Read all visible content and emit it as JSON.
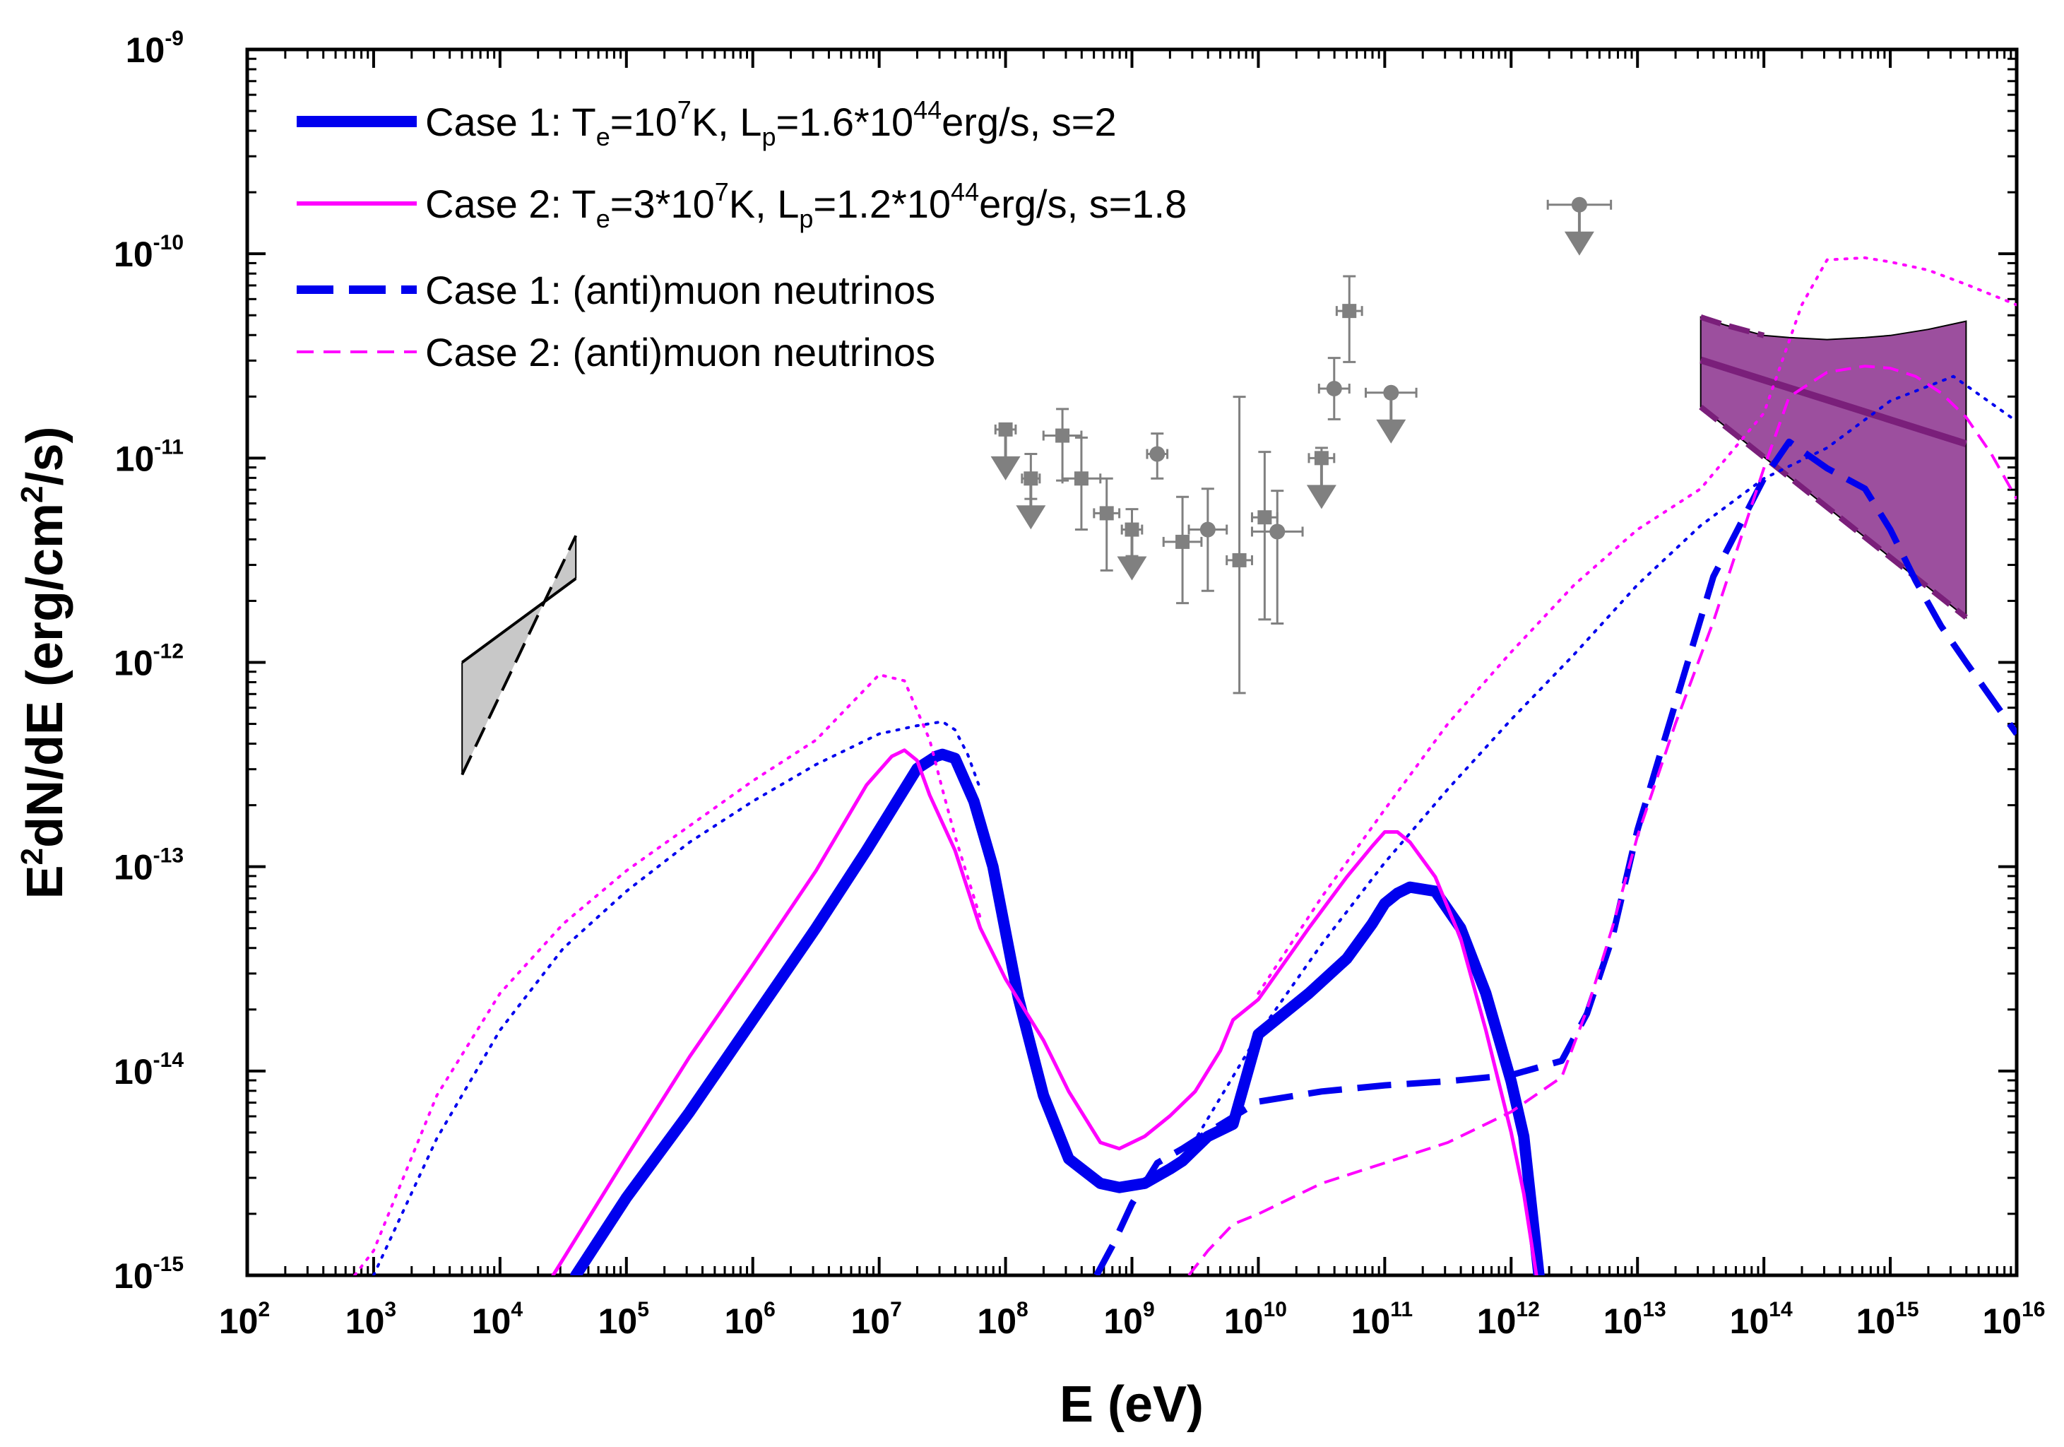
{
  "chart_data": {
    "type": "line",
    "log_x": true,
    "log_y": true,
    "xlabel": "E (eV)",
    "ylabel": {
      "text": "E",
      "sup": "2",
      "rest": "dN/dE (erg/cm",
      "sup2": "2",
      "end": "/s)"
    },
    "xlim": [
      100,
      1e+16
    ],
    "ylim": [
      1e-15,
      1e-09
    ],
    "x_ticks": [
      2,
      3,
      4,
      5,
      6,
      7,
      8,
      9,
      10,
      11,
      12,
      13,
      14,
      15,
      16
    ],
    "y_ticks": [
      -15,
      -14,
      -13,
      -12,
      -11,
      -10,
      -9
    ],
    "tick_base": "10",
    "colors": {
      "case1": "#0000ee",
      "case2": "#ff00ff",
      "data": "#808080",
      "band": "#9c4f9e",
      "band_line": "#7a1f7a",
      "xray": "#c8c8c8"
    },
    "legend": [
      {
        "name": "case1",
        "prefix": "Case 1: T",
        "sub1": "e",
        "eq1": "=10",
        "sup1": "7",
        "mid": "K, L",
        "sub2": "p",
        "eq2": "=1.6*10",
        "sup2": "44",
        "end": "erg/s, s=2",
        "style": "solid-thick",
        "color": "#0000ee"
      },
      {
        "name": "case2",
        "prefix": "Case 2: T",
        "sub1": "e",
        "eq1": "=3*10",
        "sup1": "7",
        "mid": "K, L",
        "sub2": "p",
        "eq2": "=1.2*10",
        "sup2": "44",
        "end": "erg/s, s=1.8",
        "style": "solid-thin",
        "color": "#ff00ff"
      },
      {
        "name": "case1-nu",
        "label": "Case 1: (anti)muon neutrinos",
        "style": "dashed-thick",
        "color": "#0000ee"
      },
      {
        "name": "case2-nu",
        "label": "Case 2: (anti)muon neutrinos",
        "style": "dashed-thin",
        "color": "#ff00ff"
      }
    ],
    "series": [
      {
        "name": "case1-total",
        "style": "solid-thick",
        "color": "#0000ee",
        "x": [
          4.6,
          5,
          5.5,
          6,
          6.5,
          6.9,
          7.2,
          7.3,
          7.45,
          7.5,
          7.6,
          7.75,
          7.9,
          8.1,
          8.3,
          8.5,
          8.75,
          8.9,
          9.1,
          9.3,
          9.4,
          9.5,
          9.6,
          9.8,
          10,
          10.4,
          10.7,
          10.9,
          11,
          11.1,
          11.2,
          11.4,
          11.6,
          11.8,
          12,
          12.1,
          12.22
        ],
        "y": [
          -15,
          -14.62,
          -14.2,
          -13.75,
          -13.3,
          -12.92,
          -12.62,
          -12.52,
          -12.46,
          -12.45,
          -12.47,
          -12.68,
          -13.0,
          -13.64,
          -14.12,
          -14.43,
          -14.55,
          -14.57,
          -14.55,
          -14.48,
          -14.44,
          -14.38,
          -14.32,
          -14.26,
          -13.82,
          -13.62,
          -13.45,
          -13.28,
          -13.18,
          -13.13,
          -13.1,
          -13.12,
          -13.3,
          -13.62,
          -14.05,
          -14.32,
          -15
        ]
      },
      {
        "name": "case1-sync",
        "style": "dotted",
        "color": "#0000ee",
        "x": [
          3,
          3.5,
          4,
          4.5,
          5,
          5.5,
          6,
          6.5,
          7,
          7.3,
          7.5,
          7.6,
          7.7,
          7.8
        ],
        "y": [
          -15,
          -14.33,
          -13.8,
          -13.4,
          -13.12,
          -12.88,
          -12.68,
          -12.5,
          -12.35,
          -12.31,
          -12.29,
          -12.33,
          -12.45,
          -12.62
        ]
      },
      {
        "name": "case1-ic",
        "style": "dotted",
        "color": "#0000ee",
        "x": [
          9.4,
          10,
          10.5,
          11,
          11.5,
          12,
          12.5,
          13,
          13.5,
          14,
          14.5,
          15,
          15.5,
          16
        ],
        "y": [
          -14.44,
          -13.82,
          -13.38,
          -12.98,
          -12.62,
          -12.28,
          -11.96,
          -11.62,
          -11.33,
          -11.1,
          -10.95,
          -10.72,
          -10.6,
          -10.82
        ]
      },
      {
        "name": "case2-total",
        "style": "solid-thin",
        "color": "#ff00ff",
        "x": [
          4.42,
          5,
          5.5,
          6,
          6.5,
          6.9,
          7.1,
          7.2,
          7.3,
          7.4,
          7.6,
          7.8,
          8.0,
          8.3,
          8.5,
          8.75,
          8.9,
          9.1,
          9.3,
          9.5,
          9.7,
          9.8,
          10,
          10.4,
          10.7,
          10.9,
          11,
          11.1,
          11.2,
          11.4,
          11.6,
          11.8,
          12,
          12.1,
          12.2
        ],
        "y": [
          -15,
          -14.42,
          -13.93,
          -13.48,
          -13.02,
          -12.6,
          -12.46,
          -12.43,
          -12.48,
          -12.65,
          -12.92,
          -13.3,
          -13.55,
          -13.85,
          -14.1,
          -14.35,
          -14.38,
          -14.32,
          -14.22,
          -14.1,
          -13.9,
          -13.75,
          -13.65,
          -13.3,
          -13.05,
          -12.9,
          -12.83,
          -12.83,
          -12.88,
          -13.05,
          -13.35,
          -13.8,
          -14.3,
          -14.6,
          -15
        ]
      },
      {
        "name": "case2-sync",
        "style": "dotted",
        "color": "#ff00ff",
        "x": [
          2.85,
          3,
          3.5,
          4,
          4.5,
          5,
          5.5,
          6,
          6.5,
          7,
          7.2,
          7.4,
          7.5,
          7.6,
          7.7,
          7.8
        ],
        "y": [
          -15,
          -14.88,
          -14.12,
          -13.62,
          -13.28,
          -13.02,
          -12.8,
          -12.58,
          -12.38,
          -12.06,
          -12.09,
          -12.38,
          -12.62,
          -12.85,
          -13.05,
          -13.25
        ]
      },
      {
        "name": "case2-ic",
        "style": "dotted",
        "color": "#ff00ff",
        "x": [
          10,
          10.5,
          11,
          11.5,
          12,
          12.5,
          13,
          13.5,
          14,
          14.3,
          14.5,
          14.8,
          15,
          15.3,
          15.6,
          16
        ],
        "y": [
          -13.62,
          -13.15,
          -12.72,
          -12.3,
          -11.95,
          -11.62,
          -11.35,
          -11.15,
          -10.78,
          -10.25,
          -10.03,
          -10.02,
          -10.04,
          -10.08,
          -10.15,
          -10.25
        ]
      },
      {
        "name": "case1-nu",
        "style": "dashed-thick",
        "color": "#0000ee",
        "x": [
          8.72,
          8.85,
          9,
          9.2,
          9.4,
          9.6,
          10,
          10.5,
          11,
          11.5,
          12,
          12.4,
          12.6,
          12.8,
          13,
          13.3,
          13.6,
          14,
          14.2,
          14.5,
          14.8,
          15,
          15.2,
          15.4,
          15.6,
          16
        ],
        "y": [
          -15,
          -14.85,
          -14.65,
          -14.45,
          -14.38,
          -14.3,
          -14.15,
          -14.1,
          -14.07,
          -14.05,
          -14.02,
          -13.95,
          -13.72,
          -13.35,
          -12.82,
          -12.2,
          -11.58,
          -11.1,
          -10.92,
          -11.05,
          -11.15,
          -11.35,
          -11.6,
          -11.82,
          -12.0,
          -12.35
        ]
      },
      {
        "name": "case2-nu",
        "style": "dashed-thin",
        "color": "#ff00ff",
        "x": [
          9.45,
          9.6,
          9.8,
          10,
          10.5,
          11,
          11.5,
          12,
          12.4,
          12.6,
          12.8,
          13,
          13.3,
          13.6,
          14,
          14.2,
          14.5,
          14.8,
          15,
          15.2,
          15.4,
          15.6,
          15.8,
          16
        ],
        "y": [
          -15,
          -14.88,
          -14.75,
          -14.7,
          -14.55,
          -14.45,
          -14.35,
          -14.2,
          -14.03,
          -13.7,
          -13.3,
          -12.85,
          -12.3,
          -11.8,
          -11.05,
          -10.7,
          -10.58,
          -10.55,
          -10.56,
          -10.6,
          -10.68,
          -10.8,
          -10.98,
          -11.2
        ]
      }
    ],
    "xray_band": {
      "x": [
        3.7,
        4.6
      ],
      "upper_solid": [
        -12.0,
        -11.59
      ],
      "upper_dashed": [
        -12.55,
        -11.38
      ],
      "lower_dashed": [
        -12.55,
        -11.38
      ]
    },
    "neutrino_band": {
      "x": [
        13.5,
        15.6
      ],
      "best_fit": [
        -10.52,
        -10.93
      ],
      "upper_x": [
        13.5,
        13.7,
        14,
        14.2,
        14.5,
        14.8,
        15,
        15.3,
        15.6
      ],
      "upper_y": [
        -10.31,
        -10.35,
        -10.4,
        -10.41,
        -10.42,
        -10.41,
        -10.4,
        -10.37,
        -10.33
      ],
      "lower_x": [
        13.5,
        15.6
      ],
      "lower_y": [
        -10.75,
        -11.78
      ]
    },
    "gamma_points": [
      {
        "x": 8.0,
        "y": -10.86,
        "xerr": 0.08,
        "yup": 0,
        "ydn": 0,
        "marker": "square"
      },
      {
        "x": 8.2,
        "y": -11.1,
        "xerr": 0.07,
        "yup": 0.12,
        "ydn": 0.1,
        "marker": "square"
      },
      {
        "x": 8.45,
        "y": -10.89,
        "xerr": 0.15,
        "yup": 0.13,
        "ydn": 0.22,
        "marker": "square"
      },
      {
        "x": 8.6,
        "y": -11.1,
        "xerr": 0.15,
        "yup": 0.2,
        "ydn": 0.25,
        "marker": "square"
      },
      {
        "x": 8.8,
        "y": -11.27,
        "xerr": 0.1,
        "yup": 0.17,
        "ydn": 0.28,
        "marker": "square"
      },
      {
        "x": 9.0,
        "y": -11.35,
        "xerr": 0.08,
        "yup": 0.1,
        "ydn": 0.13,
        "marker": "square"
      },
      {
        "x": 9.2,
        "y": -10.98,
        "xerr": 0.08,
        "yup": 0.1,
        "ydn": 0.12,
        "marker": "circle"
      },
      {
        "x": 9.4,
        "y": -11.41,
        "xerr": 0.15,
        "yup": 0.22,
        "ydn": 0.3,
        "marker": "square"
      },
      {
        "x": 9.6,
        "y": -11.35,
        "xerr": 0.15,
        "yup": 0.2,
        "ydn": 0.3,
        "marker": "circle"
      },
      {
        "x": 9.85,
        "y": -11.5,
        "xerr": 0.1,
        "yup": 0.8,
        "ydn": 0.65,
        "marker": "square"
      },
      {
        "x": 10.05,
        "y": -11.29,
        "xerr": 0.1,
        "yup": 0.32,
        "ydn": 0.5,
        "marker": "square"
      },
      {
        "x": 10.15,
        "y": -11.36,
        "xerr": 0.2,
        "yup": 0.2,
        "ydn": 0.45,
        "marker": "circle"
      },
      {
        "x": 10.5,
        "y": -11.0,
        "xerr": 0.1,
        "yup": 0.05,
        "ydn": 0,
        "marker": "square"
      },
      {
        "x": 10.6,
        "y": -10.66,
        "xerr": 0.12,
        "yup": 0.15,
        "ydn": 0.15,
        "marker": "circle"
      },
      {
        "x": 10.72,
        "y": -10.28,
        "xerr": 0.1,
        "yup": 0.17,
        "ydn": 0.25,
        "marker": "square"
      },
      {
        "x": 11.05,
        "y": -10.68,
        "xerr": 0.2,
        "yup": 0,
        "ydn": 0,
        "marker": "circle"
      },
      {
        "x": 12.54,
        "y": -9.76,
        "xerr": 0.25,
        "yup": 0,
        "ydn": 0,
        "marker": "circle"
      }
    ],
    "upper_limits": [
      {
        "x": 8.0,
        "y": -10.86
      },
      {
        "x": 8.2,
        "y": -11.1
      },
      {
        "x": 9.0,
        "y": -11.35
      },
      {
        "x": 10.5,
        "y": -11.0
      },
      {
        "x": 11.05,
        "y": -10.68
      },
      {
        "x": 12.54,
        "y": -9.76
      }
    ]
  }
}
